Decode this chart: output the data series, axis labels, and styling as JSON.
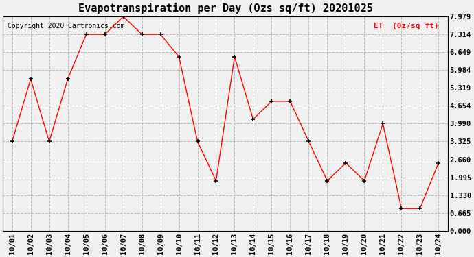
{
  "title": "Evapotranspiration per Day (Ozs sq/ft) 20201025",
  "copyright_text": "Copyright 2020 Cartronics.com",
  "legend_label": "ET  (0z/sq ft)",
  "x_labels": [
    "10/01",
    "10/02",
    "10/03",
    "10/04",
    "10/05",
    "10/06",
    "10/07",
    "10/08",
    "10/09",
    "10/10",
    "10/11",
    "10/12",
    "10/13",
    "10/14",
    "10/15",
    "10/16",
    "10/17",
    "10/18",
    "10/19",
    "10/20",
    "10/21",
    "10/22",
    "10/23",
    "10/24"
  ],
  "y_values": [
    3.325,
    5.652,
    3.325,
    5.652,
    7.314,
    7.314,
    7.979,
    7.314,
    7.314,
    6.482,
    3.325,
    1.862,
    6.482,
    4.157,
    4.821,
    4.821,
    3.325,
    1.862,
    2.527,
    1.862,
    3.99,
    0.831,
    0.831,
    2.527
  ],
  "y_ticks": [
    0.0,
    0.665,
    1.33,
    1.995,
    2.66,
    3.325,
    3.99,
    4.654,
    5.319,
    5.984,
    6.649,
    7.314,
    7.979
  ],
  "ylim": [
    0.0,
    7.979
  ],
  "line_color": "red",
  "marker_color": "black",
  "grid_color": "#bbbbbb",
  "bg_color": "#f0f0f0",
  "title_fontsize": 11,
  "copyright_fontsize": 7,
  "legend_color": "red",
  "tick_fontsize": 7.5
}
